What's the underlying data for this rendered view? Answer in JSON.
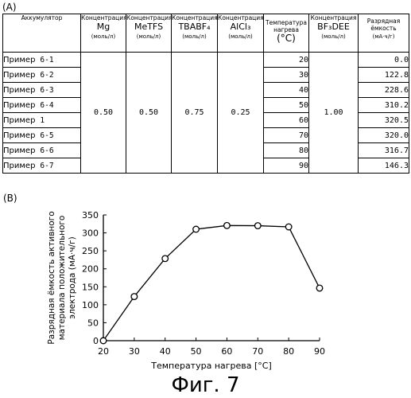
{
  "labels": {
    "a": "(A)",
    "b": "(B)"
  },
  "table": {
    "headers": {
      "accumulator": "Аккумулятор",
      "mg": {
        "top": "Концентрация",
        "name": "Mg",
        "unit": "(моль/л)"
      },
      "metfs": {
        "top": "Концентрация",
        "name": "MeTFS",
        "unit": "(моль/л)"
      },
      "tbabf4": {
        "top": "Концентрация",
        "name": "TBABF₄",
        "unit": "(моль/л)"
      },
      "alcl3": {
        "top": "Концентрация",
        "name": "AlCl₃",
        "unit": "(моль/л)"
      },
      "temp": {
        "top": "Температура нагрева",
        "unit": "(°C)"
      },
      "bf3dee": {
        "top": "Концентрация",
        "name": "BF₃DEE",
        "unit": "(моль/л)"
      },
      "capacity": {
        "top": "Разрядная ёмкость",
        "unit": "(мА·ч/г)"
      }
    },
    "rows": [
      {
        "prefix": "Пример",
        "num": "6-1",
        "temp": "20",
        "capacity": "0.0"
      },
      {
        "prefix": "Пример",
        "num": "6-2",
        "temp": "30",
        "capacity": "122.8"
      },
      {
        "prefix": "Пример",
        "num": "6-3",
        "temp": "40",
        "capacity": "228.6"
      },
      {
        "prefix": "Пример",
        "num": "6-4",
        "temp": "50",
        "capacity": "310.2"
      },
      {
        "prefix": "Пример",
        "num": "1",
        "temp": "60",
        "capacity": "320.5"
      },
      {
        "prefix": "Пример",
        "num": "6-5",
        "temp": "70",
        "capacity": "320.0"
      },
      {
        "prefix": "Пример",
        "num": "6-6",
        "temp": "80",
        "capacity": "316.7"
      },
      {
        "prefix": "Пример",
        "num": "6-7",
        "temp": "90",
        "capacity": "146.3"
      }
    ],
    "concentrations": {
      "mg": "0.50",
      "metfs": "0.50",
      "tbabf4": "0.75",
      "alcl3": "0.25",
      "bf3dee": "1.00"
    }
  },
  "chart_data": {
    "type": "line",
    "x": [
      20,
      30,
      40,
      50,
      60,
      70,
      80,
      90
    ],
    "series": [
      {
        "values": [
          0.0,
          122.8,
          228.6,
          310.2,
          320.5,
          320.0,
          316.7,
          146.3
        ]
      }
    ],
    "xlabel": "Температура нагрева [°C]",
    "ylabel": [
      "Разрядная ёмкость активного",
      "материала положительного",
      "электрода (мА·ч/г)"
    ],
    "xlim": [
      20,
      90
    ],
    "ylim": [
      0,
      350
    ],
    "xticks": [
      20,
      30,
      40,
      50,
      60,
      70,
      80,
      90
    ],
    "yticks": [
      0,
      50,
      100,
      150,
      200,
      250,
      300,
      350
    ],
    "grid": false,
    "marker": "open-circle",
    "line_color": "#000000"
  },
  "caption": "Фиг. 7"
}
